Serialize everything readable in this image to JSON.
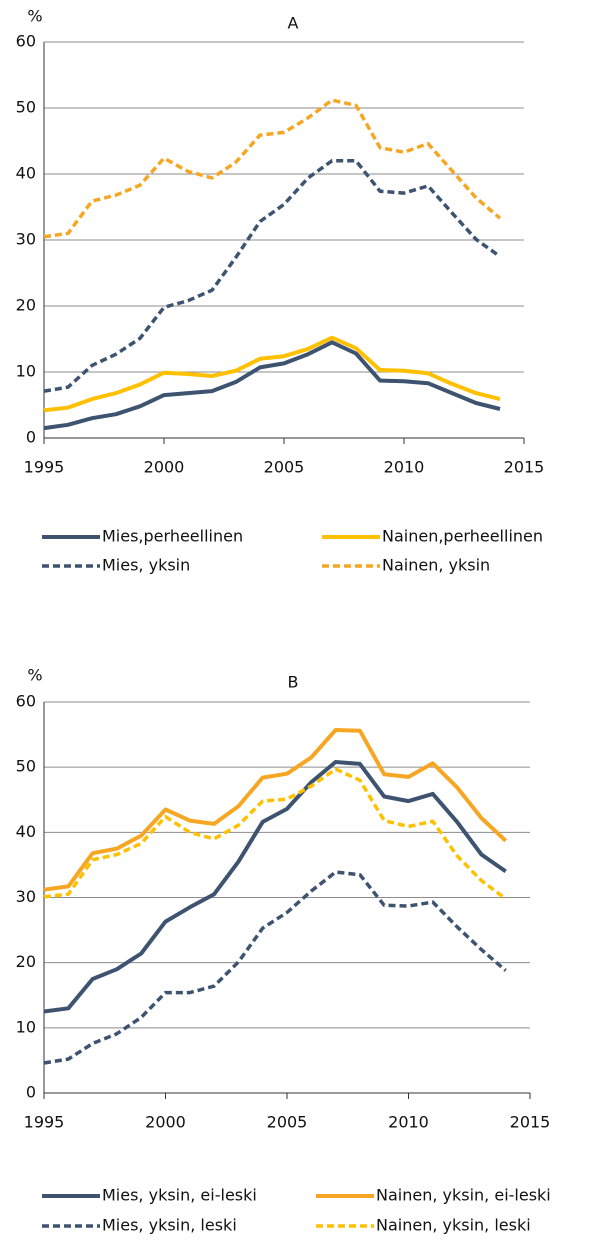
{
  "chart_data": [
    {
      "type": "line",
      "title": "A",
      "ylabel": "%",
      "x": [
        1995,
        1996,
        1997,
        1998,
        1999,
        2000,
        2001,
        2002,
        2003,
        2004,
        2005,
        2006,
        2007,
        2008,
        2009,
        2010,
        2011,
        2012,
        2013,
        2014
      ],
      "xlim": [
        1995,
        2015
      ],
      "xticks": [
        1995,
        2000,
        2005,
        2010,
        2015
      ],
      "ylim": [
        0,
        60
      ],
      "yticks": [
        0,
        10,
        20,
        30,
        40,
        50,
        60
      ],
      "grid": true,
      "series": [
        {
          "name": "Mies,perheellinen",
          "color": "#3d5370",
          "style": "solid",
          "values": [
            1.5,
            2,
            3,
            3.6,
            4.8,
            6.5,
            6.8,
            7.1,
            8.5,
            10.7,
            11.3,
            12.7,
            14.5,
            12.8,
            8.7,
            8.6,
            8.3,
            6.8,
            5.3,
            4.4
          ]
        },
        {
          "name": "Nainen,perheellinen",
          "color": "#ffc000",
          "style": "solid",
          "values": [
            4.2,
            4.6,
            5.9,
            6.8,
            8.1,
            9.9,
            9.7,
            9.4,
            10.2,
            12,
            12.4,
            13.5,
            15.2,
            13.6,
            10.3,
            10.2,
            9.8,
            8.2,
            6.8,
            5.9
          ]
        },
        {
          "name": "Mies, yksin",
          "color": "#3d5370",
          "style": "dashed",
          "values": [
            7.1,
            7.7,
            11,
            12.7,
            15.1,
            19.8,
            20.8,
            22.4,
            27.4,
            32.8,
            35.4,
            39.4,
            42,
            42,
            37.4,
            37.1,
            38.2,
            34.1,
            30.1,
            27.5
          ]
        },
        {
          "name": "Nainen, yksin",
          "color": "#f6a623",
          "style": "dashed",
          "values": [
            30.5,
            31,
            35.9,
            36.8,
            38.3,
            42.4,
            40.4,
            39.4,
            41.8,
            45.9,
            46.3,
            48.5,
            51.2,
            50.4,
            44,
            43.3,
            44.6,
            40.5,
            36.4,
            33.3
          ]
        }
      ]
    },
    {
      "type": "line",
      "title": "B",
      "ylabel": "%",
      "x": [
        1995,
        1996,
        1997,
        1998,
        1999,
        2000,
        2001,
        2002,
        2003,
        2004,
        2005,
        2006,
        2007,
        2008,
        2009,
        2010,
        2011,
        2012,
        2013,
        2014
      ],
      "xlim": [
        1995,
        2015
      ],
      "xticks": [
        1995,
        2000,
        2005,
        2010,
        2015
      ],
      "ylim": [
        0,
        60
      ],
      "yticks": [
        0,
        10,
        20,
        30,
        40,
        50,
        60
      ],
      "grid": true,
      "series": [
        {
          "name": "Mies, yksin, ei-leski",
          "color": "#3d5370",
          "style": "solid",
          "values": [
            12.5,
            13,
            17.5,
            19,
            21.4,
            26.3,
            28.5,
            30.5,
            35.5,
            41.6,
            43.6,
            47.7,
            50.8,
            50.5,
            45.5,
            44.8,
            45.9,
            41.6,
            36.6,
            34
          ]
        },
        {
          "name": "Nainen, yksin, ei-leski",
          "color": "#f6a623",
          "style": "solid",
          "values": [
            31.2,
            31.7,
            36.8,
            37.5,
            39.5,
            43.5,
            41.8,
            41.3,
            44,
            48.4,
            49,
            51.5,
            55.7,
            55.6,
            48.9,
            48.5,
            50.6,
            46.9,
            42.2,
            38.7
          ]
        },
        {
          "name": "Mies, yksin, leski",
          "color": "#3d5370",
          "style": "dashed",
          "values": [
            4.6,
            5.2,
            7.6,
            9.1,
            11.6,
            15.4,
            15.4,
            16.4,
            20.1,
            25.3,
            27.7,
            31,
            33.9,
            33.5,
            28.8,
            28.7,
            29.3,
            25.5,
            22,
            18.8
          ]
        },
        {
          "name": "Nainen, yksin, leski",
          "color": "#ffc000",
          "style": "dashed",
          "values": [
            30.1,
            30.5,
            35.8,
            36.6,
            38.3,
            42.4,
            40,
            39,
            41.1,
            44.8,
            45.1,
            47.1,
            49.7,
            48,
            41.8,
            40.9,
            41.7,
            36.4,
            32.6,
            29.8
          ]
        }
      ]
    }
  ]
}
